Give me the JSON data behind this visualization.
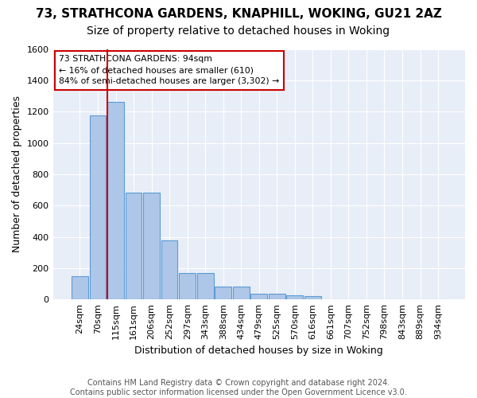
{
  "title1": "73, STRATHCONA GARDENS, KNAPHILL, WOKING, GU21 2AZ",
  "title2": "Size of property relative to detached houses in Woking",
  "xlabel": "Distribution of detached houses by size in Woking",
  "ylabel": "Number of detached properties",
  "categories": [
    "24sqm",
    "70sqm",
    "115sqm",
    "161sqm",
    "206sqm",
    "252sqm",
    "297sqm",
    "343sqm",
    "388sqm",
    "434sqm",
    "479sqm",
    "525sqm",
    "570sqm",
    "616sqm",
    "661sqm",
    "707sqm",
    "752sqm",
    "798sqm",
    "843sqm",
    "889sqm",
    "934sqm"
  ],
  "values": [
    150,
    1175,
    1260,
    680,
    680,
    375,
    170,
    170,
    80,
    80,
    35,
    35,
    25,
    20,
    0,
    0,
    0,
    0,
    0,
    0,
    0
  ],
  "bar_color": "#aec6e8",
  "bar_edge_color": "#5b9bd5",
  "vline_color": "#cc0000",
  "annotation_line1": "73 STRATHCONA GARDENS: 94sqm",
  "annotation_line2": "← 16% of detached houses are smaller (610)",
  "annotation_line3": "84% of semi-detached houses are larger (3,302) →",
  "annotation_box_color": "white",
  "annotation_box_edge": "#cc0000",
  "ylim": [
    0,
    1600
  ],
  "yticks": [
    0,
    200,
    400,
    600,
    800,
    1000,
    1200,
    1400,
    1600
  ],
  "bg_color": "#e8eef7",
  "footnote": "Contains HM Land Registry data © Crown copyright and database right 2024.\nContains public sector information licensed under the Open Government Licence v3.0.",
  "title1_fontsize": 11,
  "title2_fontsize": 10,
  "xlabel_fontsize": 9,
  "ylabel_fontsize": 9,
  "footnote_fontsize": 7
}
